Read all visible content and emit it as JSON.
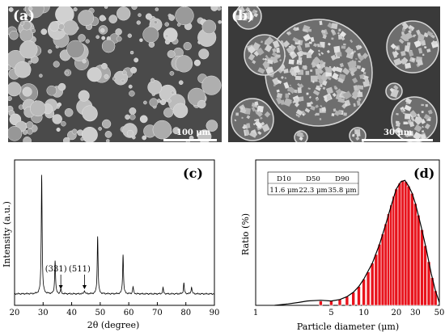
{
  "panels": {
    "a": {
      "label": "(a)",
      "scalebar": "100 μm"
    },
    "b": {
      "label": "(b)",
      "scalebar": "30 μm"
    },
    "c": {
      "label": "(c)"
    },
    "d": {
      "label": "(d)"
    }
  },
  "chart_data": [
    {
      "type": "line",
      "panel": "(c)",
      "xlabel": "2θ (degree)",
      "ylabel": "Intensity (a.u.)",
      "xlim": [
        20,
        90
      ],
      "ylim": [
        0,
        100
      ],
      "xticks": [
        20,
        30,
        40,
        50,
        60,
        70,
        80,
        90
      ],
      "peaks": [
        {
          "x": 29.5,
          "y": 100
        },
        {
          "x": 34.2,
          "y": 28
        },
        {
          "x": 36.2,
          "y": 4
        },
        {
          "x": 44.5,
          "y": 3
        },
        {
          "x": 49.1,
          "y": 48
        },
        {
          "x": 58.0,
          "y": 33
        },
        {
          "x": 61.5,
          "y": 6
        },
        {
          "x": 72.0,
          "y": 5
        },
        {
          "x": 79.3,
          "y": 9
        },
        {
          "x": 82.0,
          "y": 6
        }
      ],
      "annotations": [
        {
          "text": "(331)",
          "x": 36.2
        },
        {
          "text": "(511)",
          "x": 44.5
        }
      ],
      "line_color": "#000000"
    },
    {
      "type": "bar",
      "panel": "(d)",
      "xlabel": "Particle diameter (μm)",
      "ylabel": "Ratio (%)",
      "xscale": "log",
      "xlim": [
        1,
        50
      ],
      "xticks": [
        1,
        5,
        10,
        20,
        30,
        50
      ],
      "bar_color": "#e8131c",
      "curve_color": "#000000",
      "x": [
        4.0,
        5.0,
        6.0,
        7.0,
        8.0,
        9.0,
        10.0,
        11.0,
        12.0,
        13.0,
        14.0,
        15.0,
        16.0,
        17.0,
        18.0,
        19.0,
        20.0,
        21.5,
        23.0,
        24.5,
        26.0,
        28.0,
        30.0,
        32.0,
        34.5,
        37.0,
        40.0,
        43.0,
        46.0
      ],
      "values": [
        3,
        3,
        4,
        6,
        9,
        13,
        18,
        23,
        29,
        35,
        42,
        49,
        56,
        63,
        69,
        75,
        80,
        84,
        86,
        85,
        82,
        77,
        70,
        62,
        52,
        41,
        30,
        19,
        10
      ],
      "curve": [
        [
          1.5,
          0
        ],
        [
          2.0,
          1
        ],
        [
          2.5,
          2
        ],
        [
          3.0,
          3
        ],
        [
          4.0,
          3.5
        ],
        [
          5.0,
          3
        ],
        [
          6.0,
          4
        ],
        [
          7.0,
          6
        ],
        [
          8.0,
          9
        ],
        [
          9.0,
          13
        ],
        [
          10,
          18
        ],
        [
          12,
          29
        ],
        [
          14,
          42
        ],
        [
          16,
          56
        ],
        [
          18,
          69
        ],
        [
          20,
          80
        ],
        [
          22,
          85
        ],
        [
          24,
          86
        ],
        [
          26,
          82
        ],
        [
          28,
          77
        ],
        [
          30,
          70
        ],
        [
          34,
          54
        ],
        [
          38,
          38
        ],
        [
          42,
          22
        ],
        [
          46,
          10
        ],
        [
          50,
          2
        ]
      ],
      "table": {
        "headers": [
          "D10",
          "D50",
          "D90"
        ],
        "values": [
          "11.6 μm",
          "22.3 μm",
          "35.8 μm"
        ]
      }
    }
  ]
}
